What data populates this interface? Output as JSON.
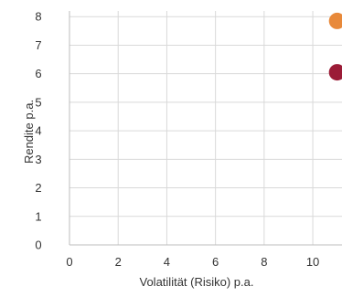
{
  "chart_data": {
    "type": "scatter",
    "xlabel": "Volatilität (Risiko) p.a.",
    "ylabel": "Rendite p.a.",
    "xlim": [
      0,
      11.2
    ],
    "ylim": [
      0,
      8.2
    ],
    "x_ticks": [
      0,
      2,
      4,
      6,
      8,
      10
    ],
    "y_ticks": [
      0,
      1,
      2,
      3,
      4,
      5,
      6,
      7,
      8
    ],
    "grid": true,
    "legend": "none",
    "series": [
      {
        "color": "#e8893a",
        "points": [
          {
            "x": 11.0,
            "y": 7.85
          }
        ]
      },
      {
        "color": "#9b1c37",
        "points": [
          {
            "x": 11.0,
            "y": 6.05
          }
        ]
      }
    ]
  }
}
